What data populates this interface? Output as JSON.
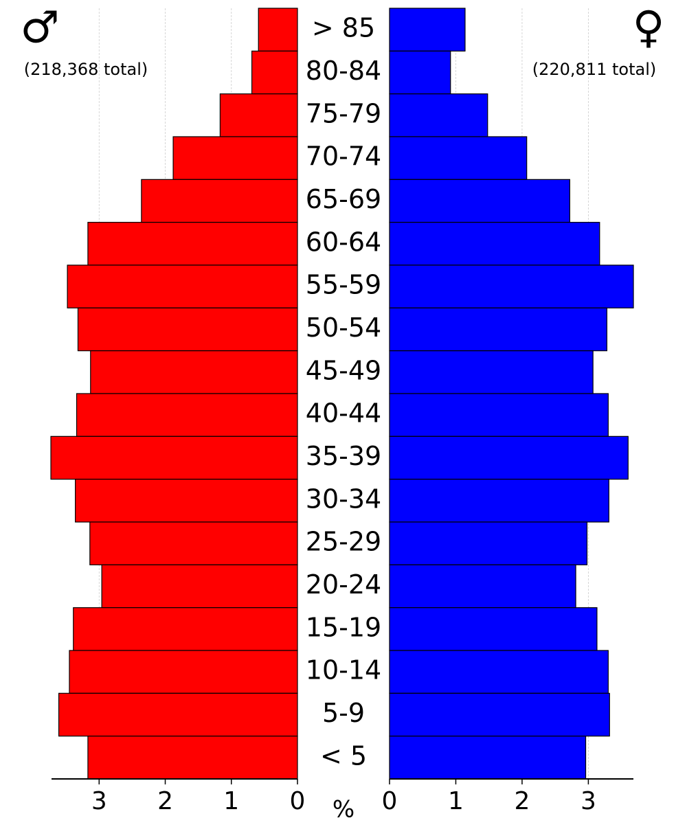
{
  "chart_data": {
    "type": "pyramid",
    "categories": [
      "> 85",
      "80-84",
      "75-79",
      "70-74",
      "65-69",
      "60-64",
      "55-59",
      "50-54",
      "45-49",
      "40-44",
      "35-39",
      "30-34",
      "25-29",
      "20-24",
      "15-19",
      "10-14",
      "5-9",
      "< 5"
    ],
    "x_label": "%",
    "grid": true,
    "series": [
      {
        "name": "♂",
        "side": "left",
        "note": "(218,368 total)",
        "color": "#ff0000",
        "values": [
          0.59,
          0.69,
          1.17,
          1.88,
          2.36,
          3.17,
          3.48,
          3.32,
          3.13,
          3.34,
          3.73,
          3.36,
          3.14,
          2.96,
          3.39,
          3.45,
          3.61,
          3.17
        ],
        "xlim": [
          0,
          3.72
        ],
        "xticks": [
          0,
          1,
          2,
          3
        ]
      },
      {
        "name": "♀",
        "side": "right",
        "note": "(220,811 total)",
        "color": "#0000ff",
        "values": [
          1.14,
          0.92,
          1.48,
          2.07,
          2.72,
          3.17,
          3.68,
          3.28,
          3.07,
          3.3,
          3.6,
          3.31,
          2.98,
          2.81,
          3.13,
          3.3,
          3.32,
          2.96
        ],
        "xlim": [
          0,
          3.68
        ],
        "xticks": [
          0,
          1,
          2,
          3
        ]
      }
    ]
  }
}
